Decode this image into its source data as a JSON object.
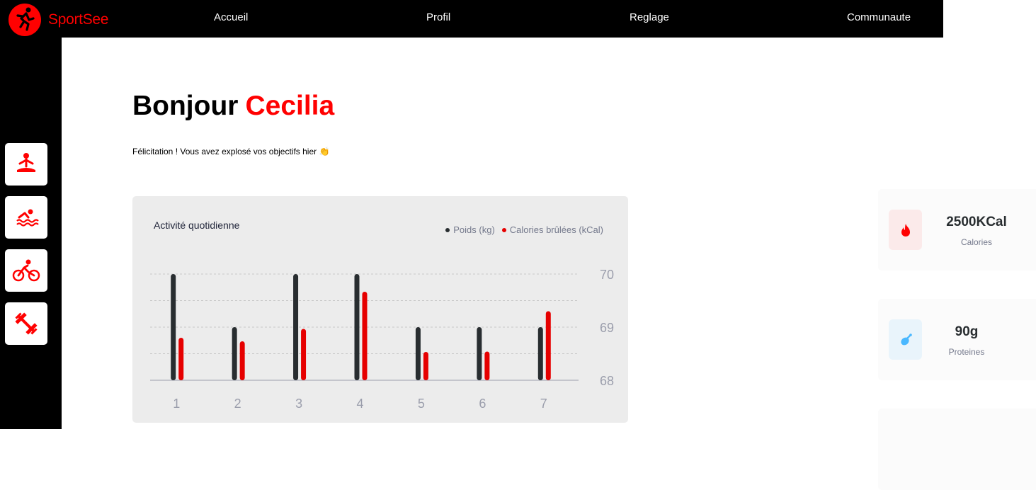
{
  "header": {
    "logo_text": "SportSee",
    "nav": [
      "Accueil",
      "Profil",
      "Reglage",
      "Communaute"
    ]
  },
  "sidebar": {
    "icons": [
      "yoga-icon",
      "swimming-icon",
      "cycling-icon",
      "weightlifting-icon"
    ]
  },
  "main": {
    "greeting": "Bonjour",
    "user_name": "Cecilia",
    "subtitle": "Félicitation ! Vous avez explosé vos objectifs hier 👏"
  },
  "colors": {
    "accent": "#ff0101",
    "weight_bar": "#282d30",
    "calories_bar": "#e60000"
  },
  "chart_data": {
    "type": "bar",
    "title": "Activité quotidienne",
    "categories": [
      "1",
      "2",
      "3",
      "4",
      "5",
      "6",
      "7"
    ],
    "series": [
      {
        "name": "Poids (kg)",
        "values": [
          70,
          69,
          70,
          70,
          69,
          69,
          69
        ]
      },
      {
        "name": "Calories brûlées (kCal)",
        "values": [
          240,
          220,
          290,
          500,
          160,
          162,
          390
        ]
      }
    ],
    "y_ticks": [
      "70",
      "69",
      "68"
    ],
    "ylim": [
      68,
      70
    ],
    "legend_position": "top-right",
    "grid": true
  },
  "stats": [
    {
      "value": "2500KCal",
      "label": "Calories",
      "icon": "fire-icon",
      "icon_bg": "#fbeaea"
    },
    {
      "value": "90g",
      "label": "Proteines",
      "icon": "chicken-icon",
      "icon_bg": "#e9f4fb"
    }
  ]
}
